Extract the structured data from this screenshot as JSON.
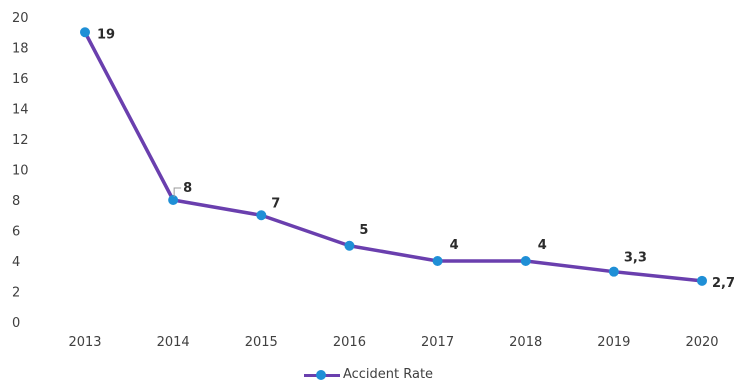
{
  "chart_data": {
    "type": "line",
    "categories": [
      "2013",
      "2014",
      "2015",
      "2016",
      "2017",
      "2018",
      "2019",
      "2020"
    ],
    "series": [
      {
        "name": "Accident Rate",
        "values": [
          19,
          8,
          7,
          5,
          4,
          4,
          3.3,
          2.7
        ],
        "labels": [
          "19",
          "8",
          "7",
          "5",
          "4",
          "4",
          "3,3",
          "2,7"
        ]
      }
    ],
    "y_ticks": [
      "0",
      "2",
      "4",
      "6",
      "8",
      "10",
      "12",
      "14",
      "16",
      "18",
      "20"
    ],
    "ylim": [
      0,
      20
    ],
    "grid": false,
    "legend_position": "bottom",
    "colors": {
      "line": "#6a3fae",
      "marker": "#1f8fd6"
    }
  }
}
